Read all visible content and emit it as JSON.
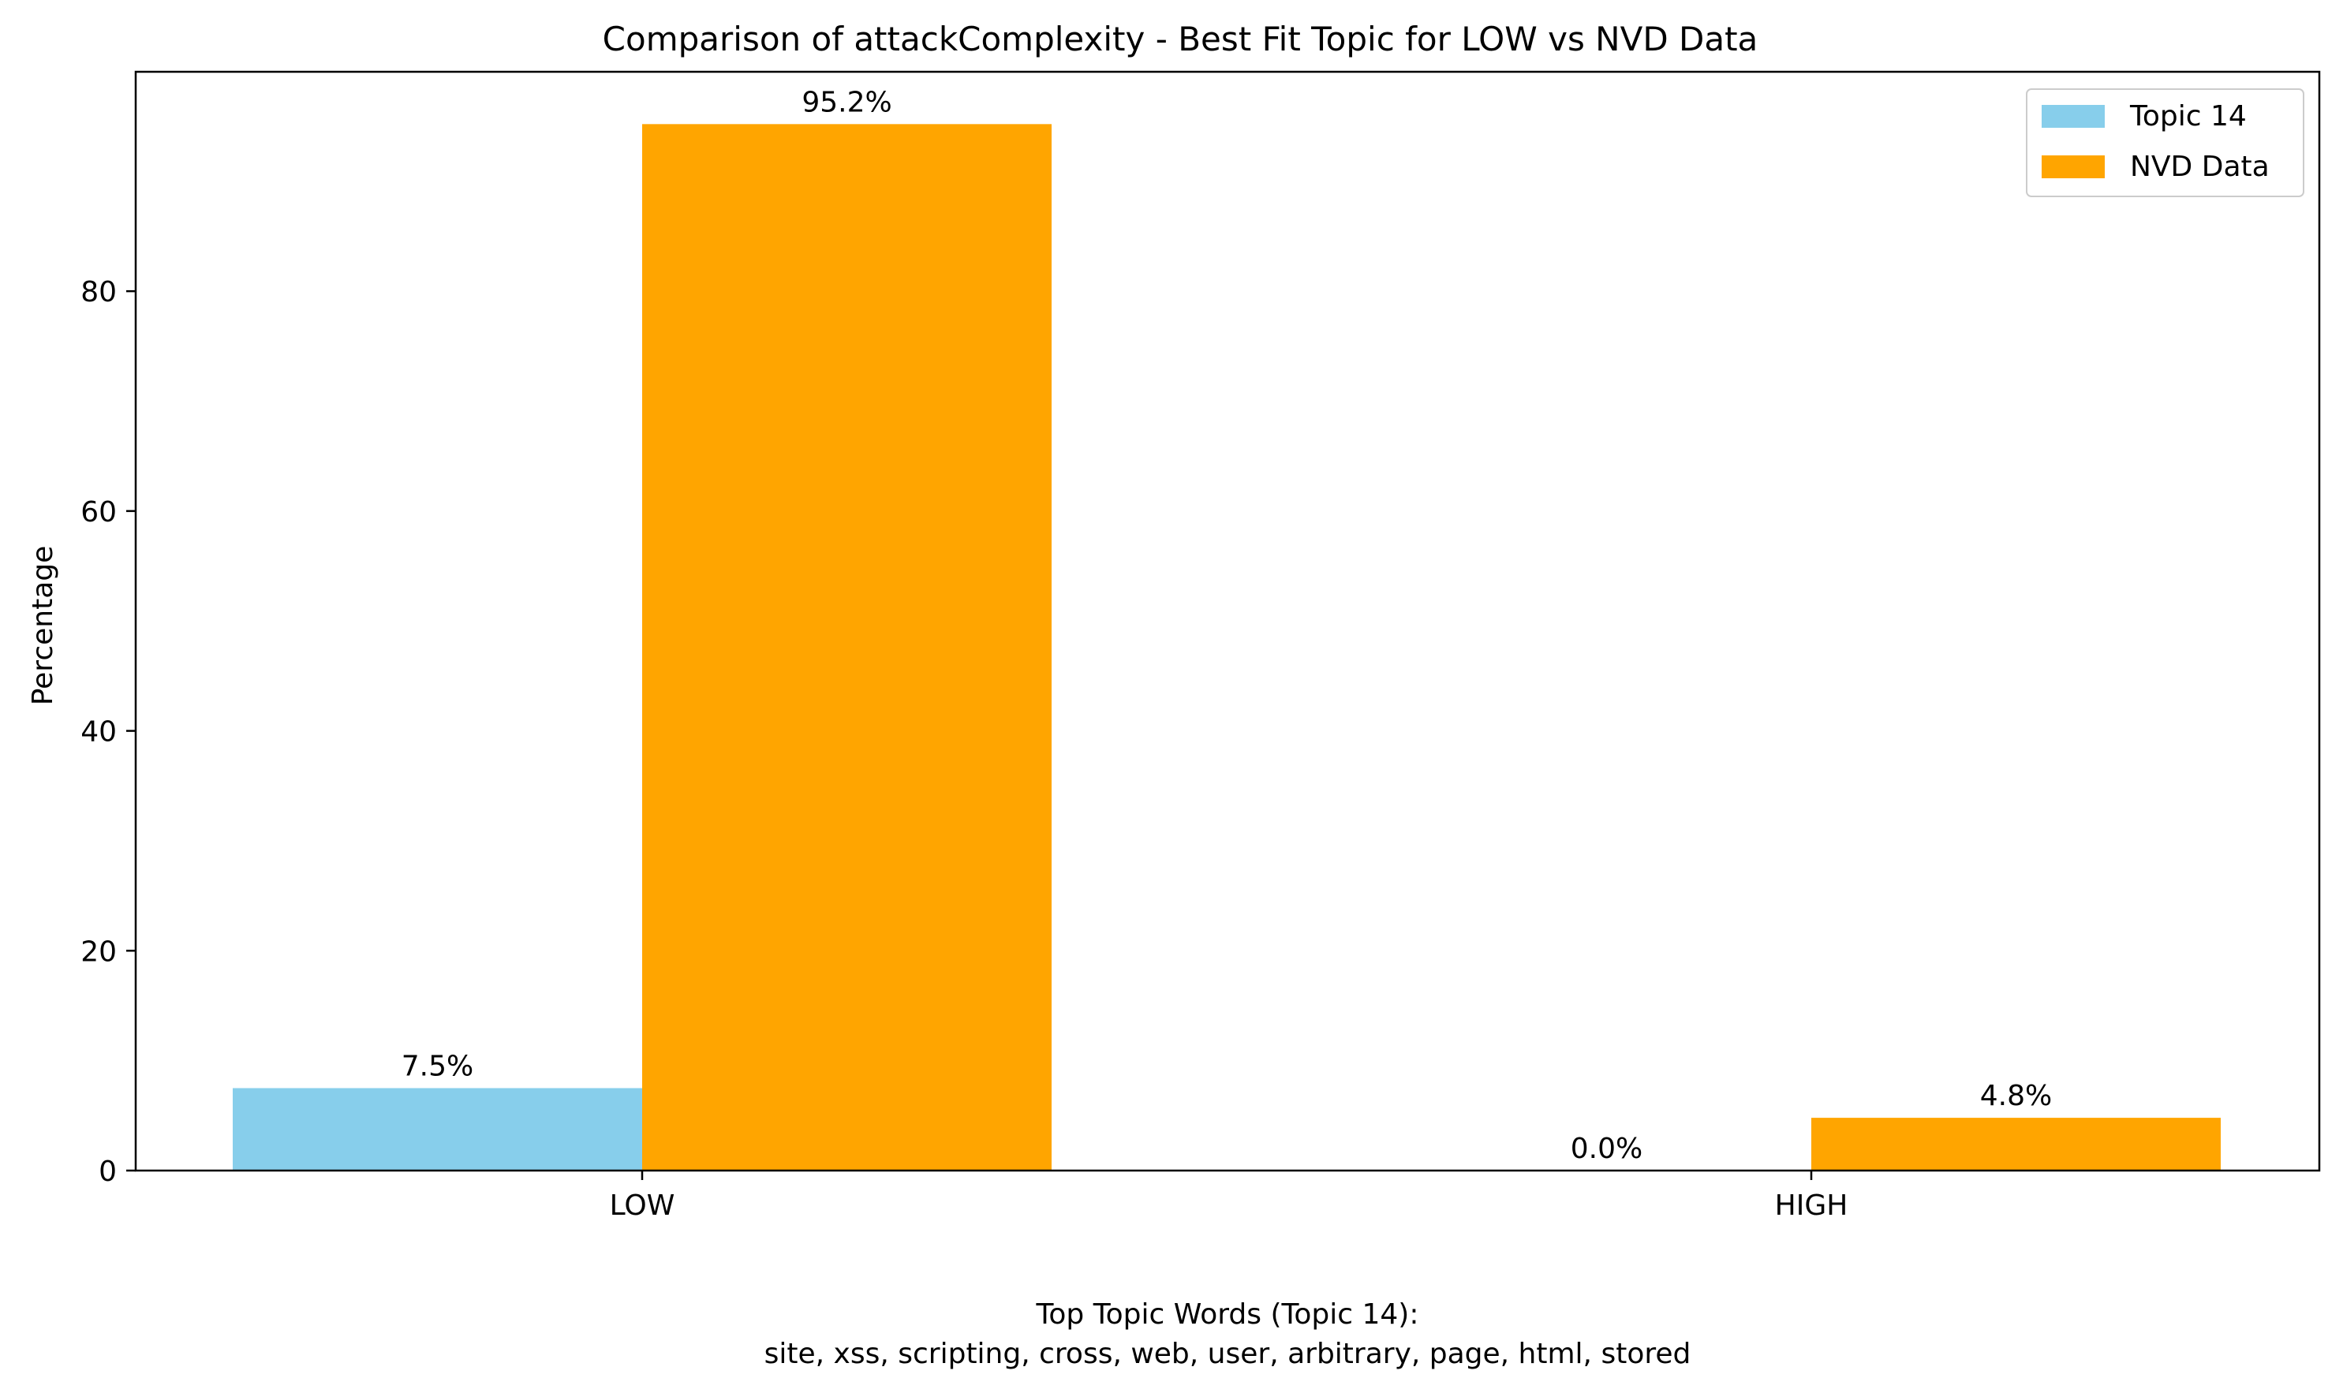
{
  "chart_data": {
    "type": "bar",
    "title": "Comparison of attackComplexity - Best Fit Topic for LOW vs NVD Data",
    "xlabel": "",
    "ylabel": "Percentage",
    "categories": [
      "LOW",
      "HIGH"
    ],
    "series": [
      {
        "name": "Topic 14",
        "values": [
          7.5,
          0.0
        ],
        "color": "#87CEEB"
      },
      {
        "name": "NVD Data",
        "values": [
          95.2,
          4.8
        ],
        "color": "#FFA500"
      }
    ],
    "data_labels": [
      [
        "7.5%",
        "0.0%"
      ],
      [
        "95.2%",
        "4.8%"
      ]
    ],
    "ylim": [
      0,
      100
    ],
    "yticks": [
      0,
      20,
      40,
      60,
      80
    ],
    "grid": false,
    "legend_position": "top-right"
  },
  "footer": {
    "line1": "Top Topic Words (Topic 14):",
    "line2": "site,  xss,  scripting,  cross,  web,  user,  arbitrary,  page,  html,  stored"
  }
}
